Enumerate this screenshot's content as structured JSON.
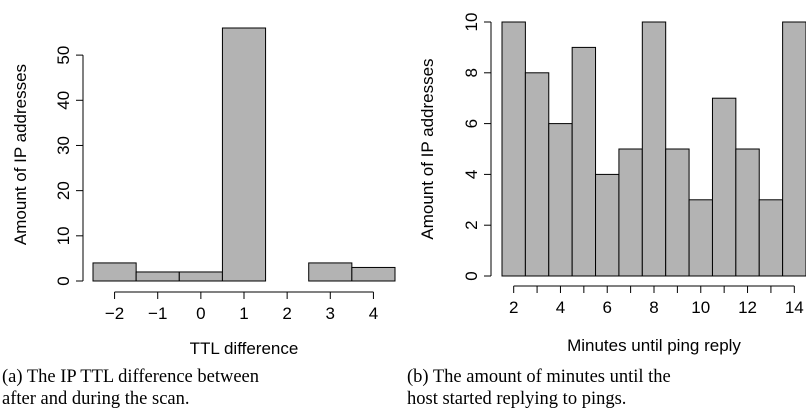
{
  "figures": [
    {
      "caption_line1": "(a) The IP TTL difference between",
      "caption_line2": "after and during the scan."
    },
    {
      "caption_line1": "(b) The amount of minutes until the",
      "caption_line2": "host started replying to pings."
    }
  ],
  "chart_data": [
    {
      "type": "bar",
      "title": "",
      "xlabel": "TTL difference",
      "ylabel": "Amount of IP addresses",
      "categories": [
        "-2",
        "-1",
        "0",
        "1",
        "2",
        "3",
        "4"
      ],
      "values": [
        4,
        2,
        2,
        56,
        0,
        4,
        3
      ],
      "xlim": [
        -2.5,
        4.5
      ],
      "ylim": [
        0,
        56
      ],
      "x_ticks": [
        -2,
        -1,
        0,
        1,
        2,
        3,
        4
      ],
      "x_tick_labels": [
        "−2",
        "−1",
        "0",
        "1",
        "2",
        "3",
        "4"
      ],
      "y_ticks": [
        0,
        10,
        20,
        30,
        40,
        50
      ],
      "y_tick_labels": [
        "0",
        "10",
        "20",
        "30",
        "40",
        "50"
      ],
      "bar_color": "#b3b3b3",
      "grid": false
    },
    {
      "type": "bar",
      "title": "",
      "xlabel": "Minutes until ping reply",
      "ylabel": "Amount of IP addresses",
      "categories": [
        "2",
        "3",
        "4",
        "5",
        "6",
        "7",
        "8",
        "9",
        "10",
        "11",
        "12",
        "13",
        "14"
      ],
      "values": [
        10,
        8,
        6,
        9,
        4,
        5,
        10,
        5,
        3,
        7,
        5,
        3,
        10
      ],
      "xlim": [
        1.5,
        14.5
      ],
      "ylim": [
        0,
        10
      ],
      "x_ticks": [
        2,
        3,
        4,
        5,
        6,
        7,
        8,
        9,
        10,
        11,
        12,
        13,
        14
      ],
      "x_tick_labels": [
        "2",
        "",
        "4",
        "",
        "6",
        "",
        "8",
        "",
        "10",
        "",
        "12",
        "",
        "14"
      ],
      "y_ticks": [
        0,
        2,
        4,
        6,
        8,
        10
      ],
      "y_tick_labels": [
        "0",
        "2",
        "4",
        "6",
        "8",
        "10"
      ],
      "bar_color": "#b3b3b3",
      "grid": false
    }
  ]
}
